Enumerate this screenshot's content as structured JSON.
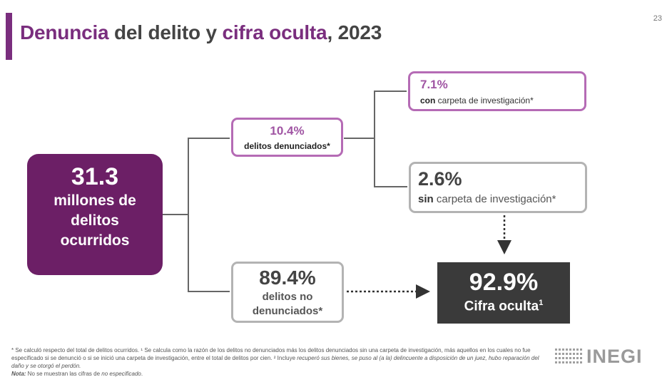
{
  "page": {
    "number": "23"
  },
  "title": {
    "part1": "Denuncia",
    "part2": " del delito y ",
    "part3": "cifra oculta",
    "part4": ", 2023"
  },
  "nodes": {
    "total": {
      "value": "31.3",
      "label_line1": "millones de",
      "label_line2": "delitos",
      "label_line3": "ocurridos"
    },
    "reported": {
      "value": "10.4%",
      "label": "delitos denunciados*"
    },
    "with_folder": {
      "value": "7.1%",
      "label_bold": "con",
      "label_rest": " carpeta de investigación*"
    },
    "without_folder": {
      "value": "2.6%",
      "label_bold": "sin",
      "label_rest": " carpeta de investigación*"
    },
    "unreported": {
      "value": "89.4%",
      "label_line1": "delitos no",
      "label_line2": "denunciados*"
    },
    "hidden_figure": {
      "value": "92.9%",
      "label": "Cifra oculta",
      "superscript": "1"
    }
  },
  "footnotes": {
    "text1": "* Se calculó respecto del total de delitos ocurridos. ¹ Se calcula como la razón de los delitos no denunciados más los delitos denunciados sin una carpeta de investigación, más aquellos en los cuales no fue especificado si se denunció o si se inició una carpeta de investigación, entre el total de delitos por cien. ² Incluye ",
    "text2": "recuperó sus bienes, se puso al (a la) delincuente a disposición de un juez, hubo reparación del daño y se otorgó el perdón.",
    "note_label": "Nota:",
    "note_text": " No se muestran las cifras de ",
    "note_italic": "no especificado",
    "note_end": "."
  },
  "logo": {
    "text": "INEGI"
  },
  "colors": {
    "purple": "#6c1f66",
    "accent": "#a055a3",
    "gray_border": "#b3b3b3",
    "dark": "#3a3a3a"
  }
}
